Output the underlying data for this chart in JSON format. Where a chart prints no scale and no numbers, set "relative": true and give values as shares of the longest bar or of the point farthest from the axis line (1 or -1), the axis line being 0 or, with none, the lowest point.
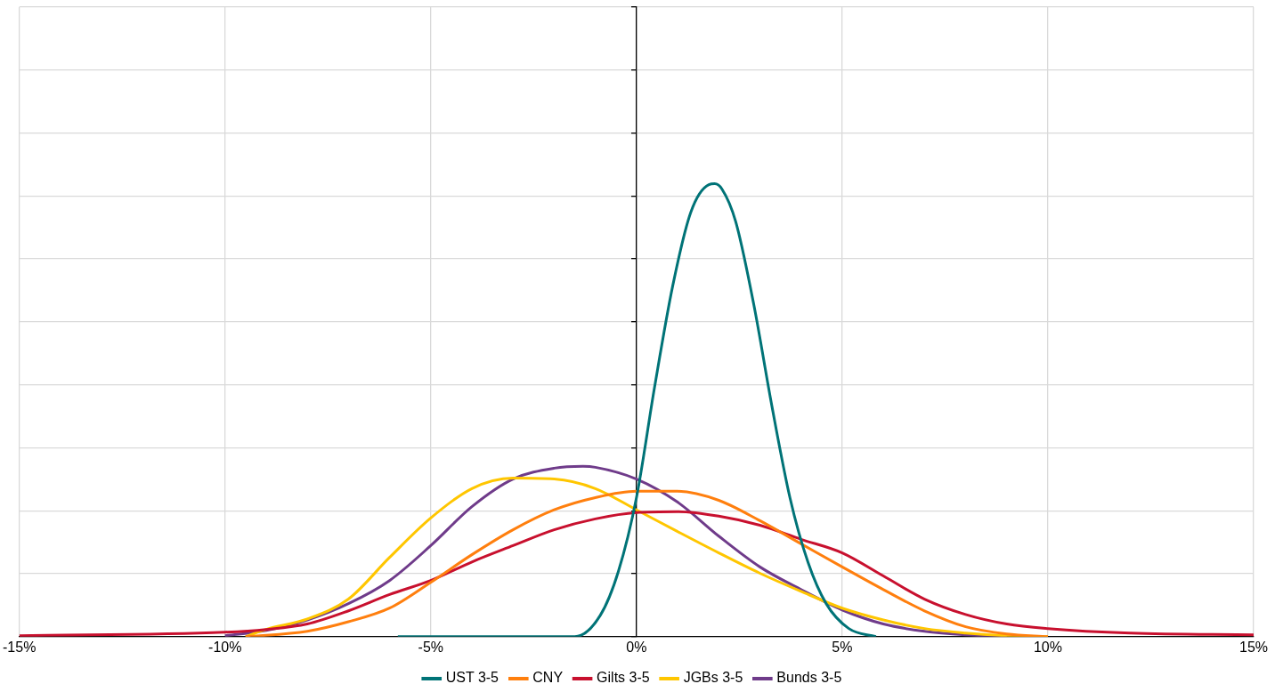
{
  "chart_data": {
    "type": "line",
    "relative": true,
    "grid": true,
    "legend": "bottom",
    "marker": "none",
    "line_style": "solid",
    "xlim": [
      -15,
      15
    ],
    "xticks": [
      {
        "value": -15,
        "label": "-15%"
      },
      {
        "value": -10,
        "label": "-10%"
      },
      {
        "value": -5,
        "label": "-5%"
      },
      {
        "value": 0,
        "label": "0%"
      },
      {
        "value": 5,
        "label": "5%"
      },
      {
        "value": 10,
        "label": "10%"
      },
      {
        "value": 15,
        "label": "15%"
      }
    ],
    "series": [
      {
        "name": "UST 3-5",
        "color": "#007377",
        "x": [
          -5.8,
          -1.5,
          -0.88,
          -0.44,
          0,
          0.44,
          0.88,
          1.32,
          1.76,
          1.9,
          2.08,
          2.41,
          2.85,
          3.29,
          3.73,
          4.17,
          4.61,
          5.16,
          5.82
        ],
        "values": [
          0,
          0,
          0.047,
          0.144,
          0.307,
          0.551,
          0.774,
          0.937,
          0.998,
          1,
          0.988,
          0.917,
          0.734,
          0.51,
          0.307,
          0.164,
          0.073,
          0.018,
          0
        ]
      },
      {
        "name": "CNY",
        "color": "#ff7f0e",
        "x": [
          -9.5,
          -8,
          -7,
          -6,
          -5,
          -4,
          -3,
          -2,
          -1,
          0,
          1,
          2,
          3,
          4,
          5,
          6,
          7,
          8,
          9,
          10
        ],
        "values": [
          0,
          0.012,
          0.033,
          0.063,
          0.12,
          0.181,
          0.236,
          0.28,
          0.307,
          0.321,
          0.321,
          0.301,
          0.256,
          0.205,
          0.154,
          0.104,
          0.057,
          0.022,
          0.006,
          0
        ]
      },
      {
        "name": "Gilts 3-5",
        "color": "#c8102e",
        "x": [
          -15,
          -10,
          -9,
          -8,
          -7,
          -6,
          -5,
          -4,
          -3,
          -2,
          -1,
          0,
          1,
          2,
          3,
          4,
          5,
          6,
          7,
          8,
          9,
          10,
          12,
          15
        ],
        "values": [
          0.002,
          0.01,
          0.016,
          0.028,
          0.057,
          0.093,
          0.124,
          0.165,
          0.201,
          0.236,
          0.26,
          0.274,
          0.276,
          0.266,
          0.246,
          0.215,
          0.185,
          0.134,
          0.083,
          0.049,
          0.028,
          0.018,
          0.008,
          0.004
        ]
      },
      {
        "name": "JGBs 3-5",
        "color": "#ffc600",
        "x": [
          -9.5,
          -9,
          -8,
          -7,
          -6,
          -5,
          -4,
          -3,
          -2,
          -1,
          0,
          1,
          2,
          3,
          4,
          5,
          6,
          7,
          8,
          9,
          10
        ],
        "values": [
          0,
          0.016,
          0.039,
          0.083,
          0.175,
          0.262,
          0.327,
          0.35,
          0.348,
          0.327,
          0.28,
          0.232,
          0.185,
          0.14,
          0.1,
          0.063,
          0.037,
          0.018,
          0.008,
          0.002,
          0
        ]
      },
      {
        "name": "Bunds 3-5",
        "color": "#6f3b8a",
        "x": [
          -10,
          -9,
          -8,
          -7,
          -6,
          -5,
          -4,
          -3,
          -2,
          -1.3,
          -1,
          0,
          1,
          2,
          3,
          4,
          5,
          6,
          7,
          8,
          9
        ],
        "values": [
          0.002,
          0.014,
          0.037,
          0.073,
          0.124,
          0.201,
          0.287,
          0.348,
          0.372,
          0.376,
          0.374,
          0.348,
          0.297,
          0.222,
          0.154,
          0.104,
          0.059,
          0.028,
          0.012,
          0.004,
          0
        ]
      }
    ]
  }
}
